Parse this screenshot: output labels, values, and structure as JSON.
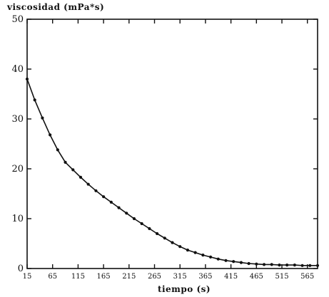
{
  "chart_data": {
    "type": "line",
    "title": "viscosidad (mPa*s)",
    "xlabel": "tiempo (s)",
    "ylabel": "",
    "xlim": [
      15,
      585
    ],
    "ylim": [
      0,
      50
    ],
    "grid": false,
    "x_ticks": [
      "15",
      "65",
      "115",
      "165",
      "215",
      "265",
      "315",
      "365",
      "415",
      "465",
      "515",
      "565"
    ],
    "x_tick_values": [
      15,
      65,
      115,
      165,
      215,
      265,
      315,
      365,
      415,
      465,
      515,
      565
    ],
    "y_ticks": [
      "0",
      "10",
      "20",
      "30",
      "40",
      "50"
    ],
    "y_tick_values": [
      0,
      10,
      20,
      30,
      40,
      50
    ],
    "series": [
      {
        "x": [
          15,
          30,
          45,
          60,
          75,
          90,
          105,
          120,
          135,
          150,
          165,
          180,
          195,
          210,
          225,
          240,
          255,
          270,
          285,
          300,
          315,
          330,
          345,
          360,
          375,
          390,
          405,
          420,
          435,
          450,
          465,
          480,
          495,
          510,
          525,
          540,
          555,
          570,
          585
        ],
        "values": [
          38.0,
          33.8,
          30.2,
          26.8,
          23.8,
          21.3,
          19.8,
          18.3,
          16.9,
          15.6,
          14.4,
          13.3,
          12.2,
          11.1,
          10.0,
          9.0,
          8.0,
          7.0,
          6.1,
          5.2,
          4.4,
          3.7,
          3.2,
          2.7,
          2.3,
          1.9,
          1.6,
          1.4,
          1.2,
          1.0,
          0.9,
          0.8,
          0.8,
          0.7,
          0.7,
          0.7,
          0.6,
          0.6,
          0.6
        ]
      }
    ]
  }
}
